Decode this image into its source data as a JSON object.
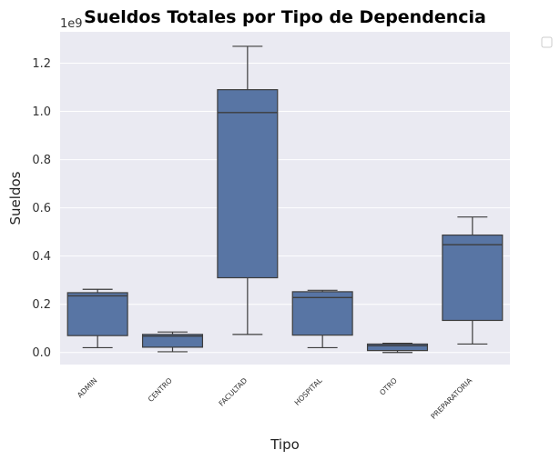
{
  "chart_data": {
    "type": "box",
    "title": "Sueldos Totales por Tipo de Dependencia",
    "xlabel": "Tipo",
    "ylabel": "Sueldos",
    "y_offset_label": "1e9",
    "ylim": [
      -0.05,
      1.33
    ],
    "yticks": [
      0.0,
      0.2,
      0.4,
      0.6,
      0.8,
      1.0,
      1.2
    ],
    "ytick_labels": [
      "0.0",
      "0.2",
      "0.4",
      "0.6",
      "0.8",
      "1.0",
      "1.2"
    ],
    "grid": true,
    "legend": "top-right, empty",
    "colors": {
      "box_fill": "#5875a4",
      "box_edge": "#3d3d3d",
      "background": "#eaeaf2",
      "grid": "#ffffff"
    },
    "categories": [
      "ADMIN",
      "CENTRO",
      "FACULTAD",
      "HOSPITAL",
      "OTRO",
      "PREPARATORIA"
    ],
    "boxes": [
      {
        "category": "ADMIN",
        "whislo": 0.02,
        "q1": 0.07,
        "med": 0.235,
        "q3": 0.248,
        "whishi": 0.262
      },
      {
        "category": "CENTRO",
        "whislo": 0.003,
        "q1": 0.022,
        "med": 0.068,
        "q3": 0.075,
        "whishi": 0.085
      },
      {
        "category": "FACULTAD",
        "whislo": 0.075,
        "q1": 0.31,
        "med": 0.995,
        "q3": 1.09,
        "whishi": 1.27
      },
      {
        "category": "HOSPITAL",
        "whislo": 0.02,
        "q1": 0.072,
        "med": 0.228,
        "q3": 0.252,
        "whishi": 0.258
      },
      {
        "category": "OTRO",
        "whislo": 0.0,
        "q1": 0.008,
        "med": 0.028,
        "q3": 0.035,
        "whishi": 0.038
      },
      {
        "category": "PREPARATORIA",
        "whislo": 0.035,
        "q1": 0.133,
        "med": 0.447,
        "q3": 0.487,
        "whishi": 0.562
      }
    ]
  }
}
